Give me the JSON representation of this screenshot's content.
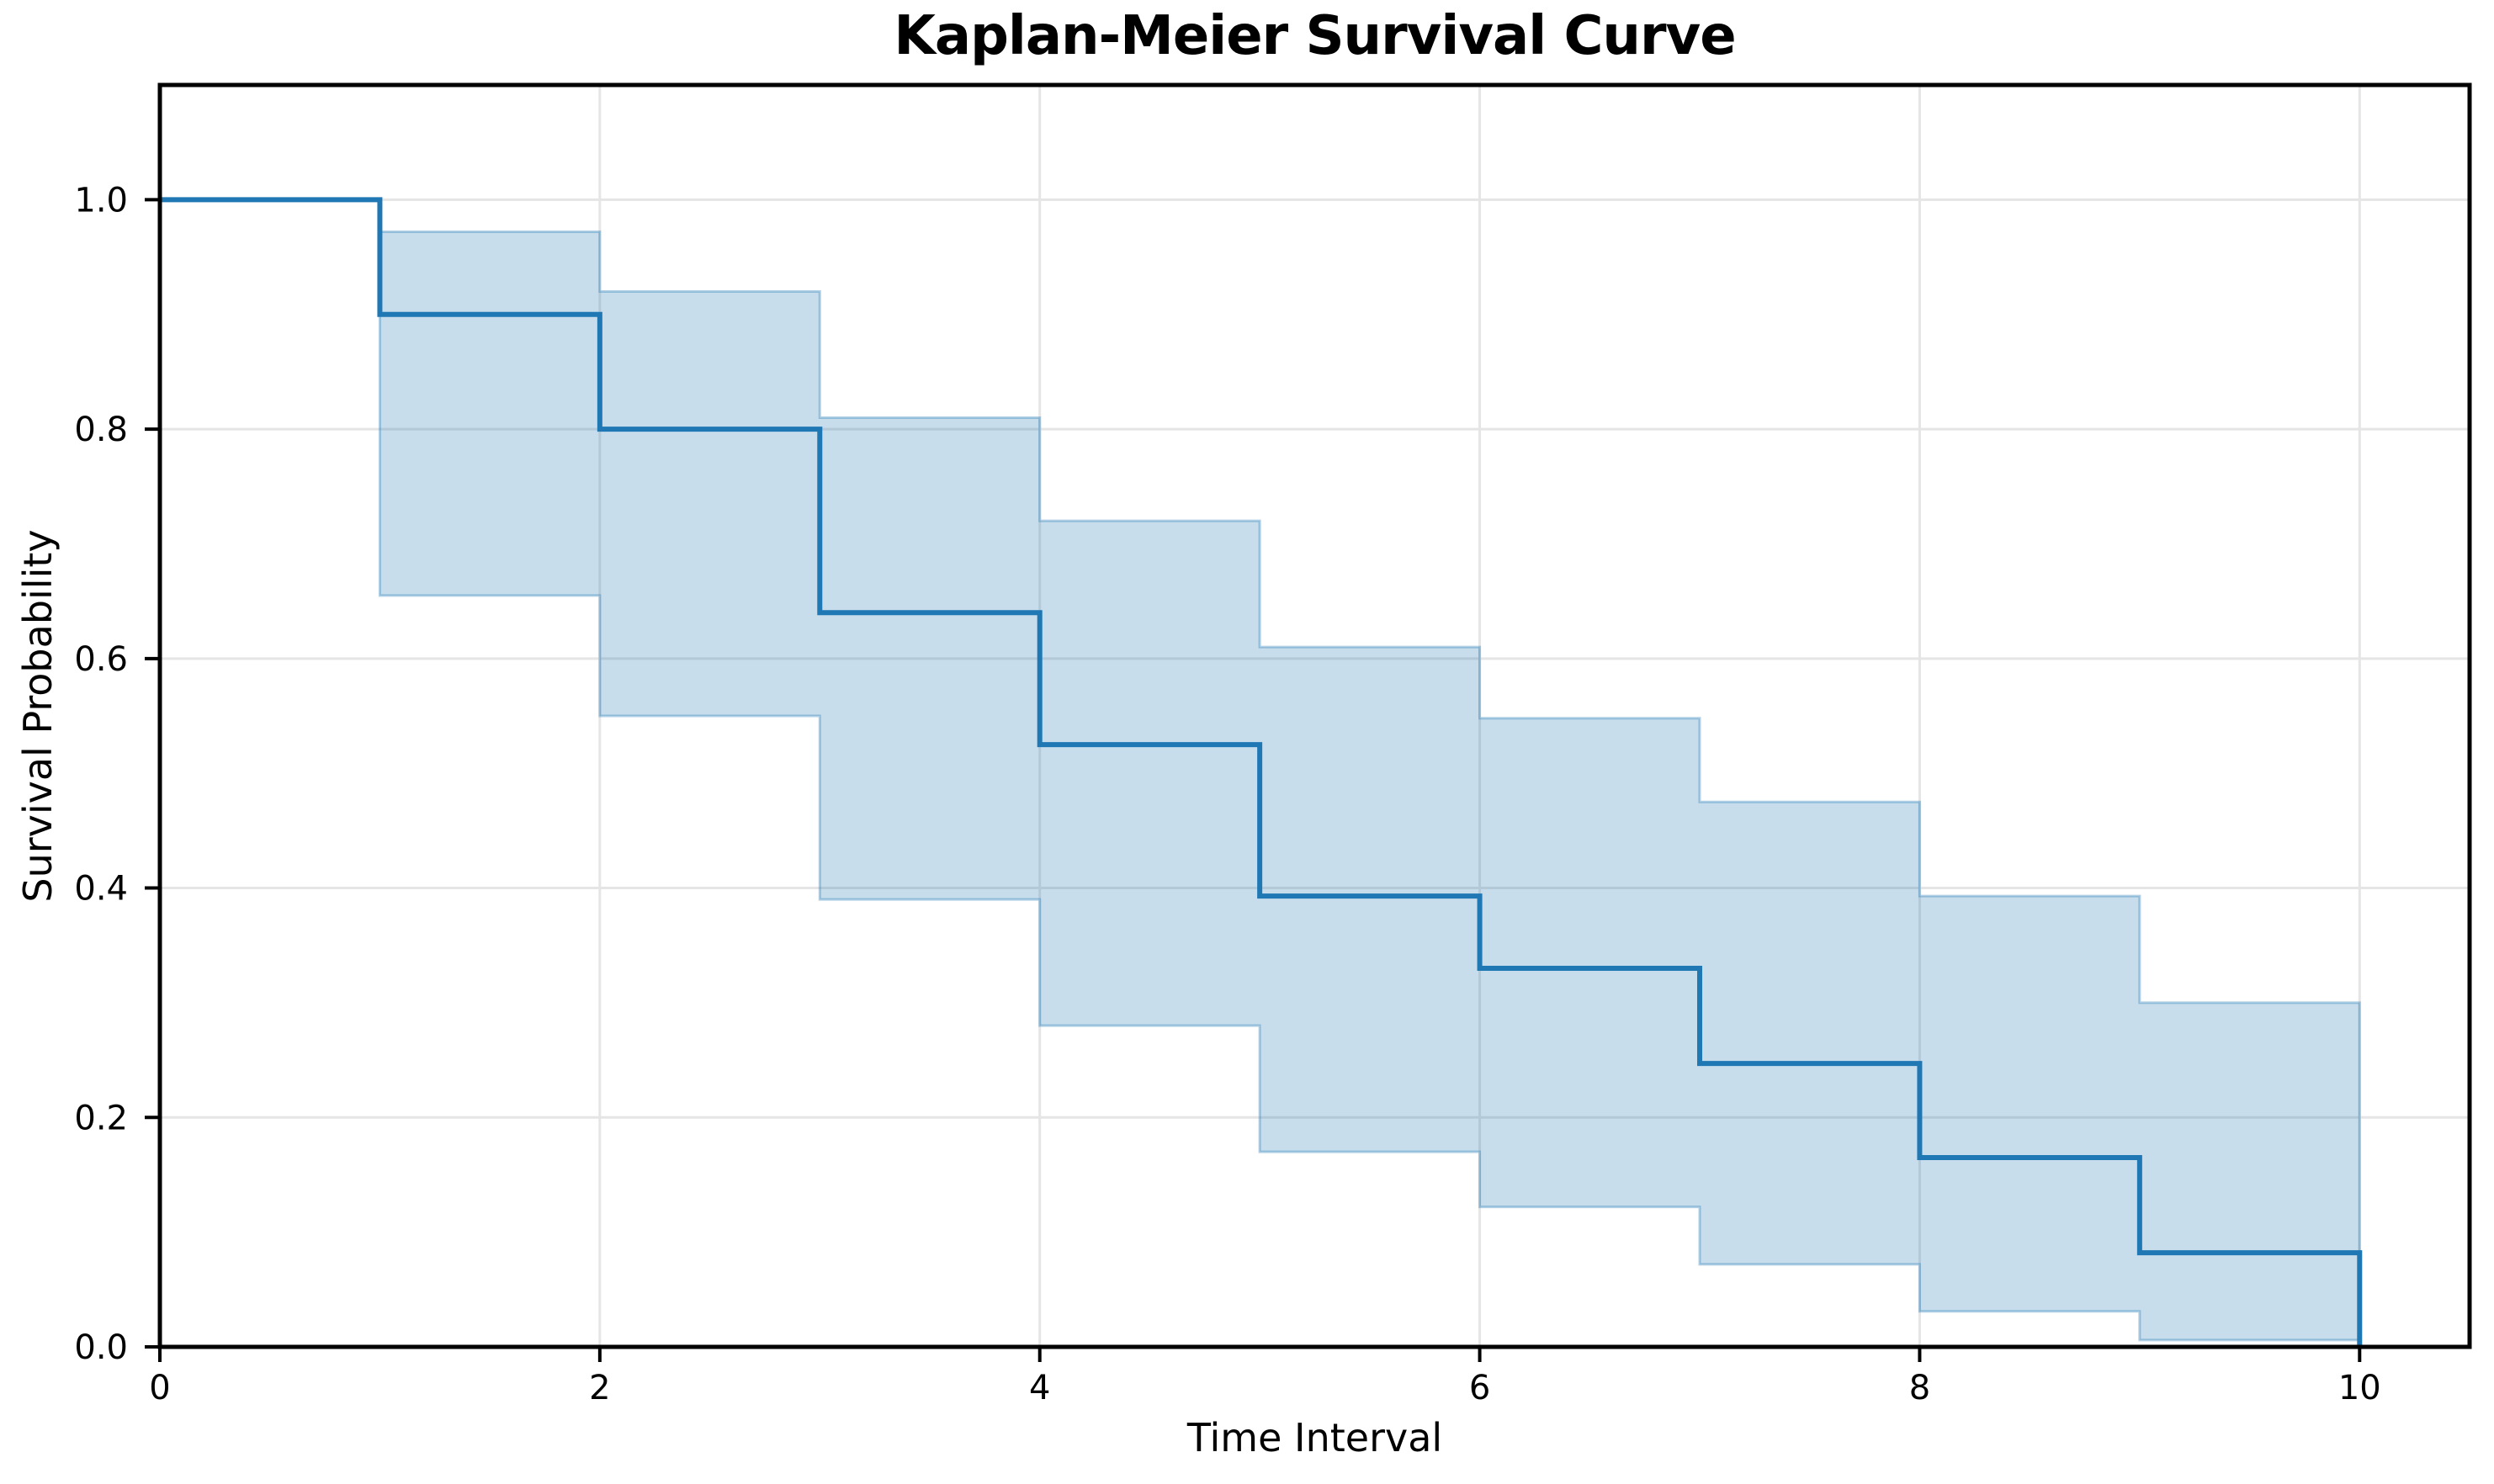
{
  "figure": {
    "title": "Kaplan-Meier Survival Curve",
    "xlabel": "Time Interval",
    "ylabel": "Survival Probability"
  },
  "chart_data": {
    "type": "line",
    "subtype": "kaplan-meier-step",
    "title": "Kaplan-Meier Survival Curve",
    "xlabel": "Time Interval",
    "ylabel": "Survival Probability",
    "xlim": [
      0,
      10.5
    ],
    "ylim": [
      0,
      1.1
    ],
    "grid": true,
    "legend": null,
    "x_ticks": [
      0,
      2,
      4,
      6,
      8,
      10
    ],
    "x_tick_labels": [
      "0",
      "2",
      "4",
      "6",
      "8",
      "10"
    ],
    "y_ticks": [
      0.0,
      0.2,
      0.4,
      0.6,
      0.8,
      1.0
    ],
    "y_tick_labels": [
      "0.0",
      "0.2",
      "0.4",
      "0.6",
      "0.8",
      "1.0"
    ],
    "colors": {
      "line": "#1f77b4",
      "band_fill": "#1f77b4",
      "grid": "#e5e5e5",
      "axes": "#000000"
    },
    "series": [
      {
        "name": "survival-probability",
        "type": "step-post",
        "x": [
          0,
          1,
          2,
          3,
          4,
          5,
          6,
          7,
          8,
          9,
          10
        ],
        "y": [
          1.0,
          0.9,
          0.8,
          0.64,
          0.525,
          0.393,
          0.33,
          0.247,
          0.165,
          0.082,
          0.0
        ],
        "color": "#1f77b4",
        "linewidth": 6
      },
      {
        "name": "confidence-band",
        "type": "band-step-post",
        "x": [
          1,
          2,
          3,
          4,
          5,
          6,
          7,
          8,
          9,
          10
        ],
        "upper": [
          0.972,
          0.92,
          0.81,
          0.72,
          0.61,
          0.548,
          0.475,
          0.393,
          0.3
        ],
        "lower": [
          0.655,
          0.55,
          0.39,
          0.28,
          0.17,
          0.122,
          0.072,
          0.031,
          0.006
        ],
        "fill_color": "#1f77b4",
        "fill_opacity": 0.25,
        "edge_opacity": 0.35
      }
    ]
  }
}
